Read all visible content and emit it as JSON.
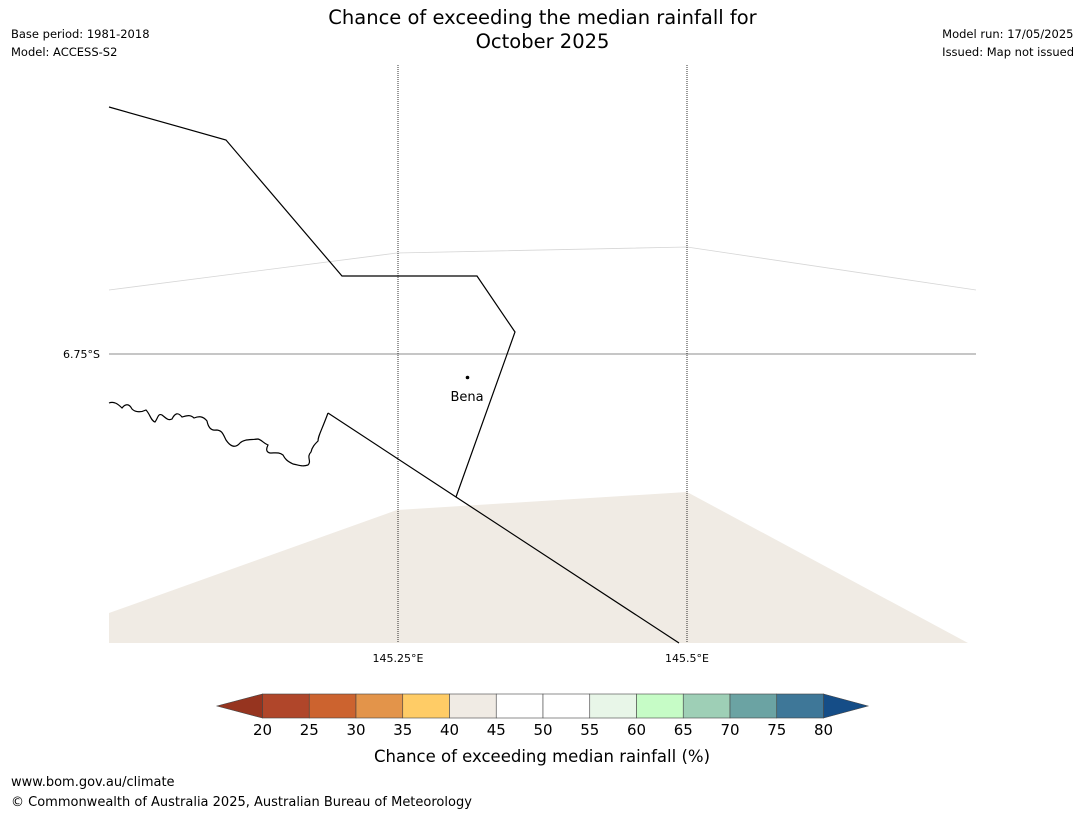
{
  "title": {
    "line1": "Chance of exceeding the median rainfall for",
    "line2": "October 2025"
  },
  "meta_left": {
    "base_period": "Base period: 1981-2018",
    "model": "Model: ACCESS-S2"
  },
  "meta_right": {
    "model_run": "Model run: 17/05/2025",
    "issued": "Issued: Map not issued"
  },
  "map": {
    "lat_labels": [
      "6.75°S"
    ],
    "lon_labels": [
      "145.25°E",
      "145.5°E"
    ],
    "place": {
      "name": "Bena"
    },
    "region_fill_color": "#f0ebe4"
  },
  "colorbar": {
    "ticks": [
      "20",
      "25",
      "30",
      "35",
      "40",
      "45",
      "50",
      "55",
      "60",
      "65",
      "70",
      "75",
      "80"
    ],
    "colors": [
      "#b0462a",
      "#cc632f",
      "#e3944a",
      "#ffcc66",
      "#f0ebe4",
      "#ffffff",
      "#ffffff",
      "#e8f6e8",
      "#c6fcc6",
      "#9ecfb6",
      "#6ba3a3",
      "#3e7798"
    ],
    "under_color": "#96341f",
    "over_color": "#154d87",
    "label": "Chance of exceeding median rainfall (%)"
  },
  "footer": {
    "url": "www.bom.gov.au/climate",
    "copyright": "© Commonwealth of Australia 2025, Australian Bureau of Meteorology"
  }
}
